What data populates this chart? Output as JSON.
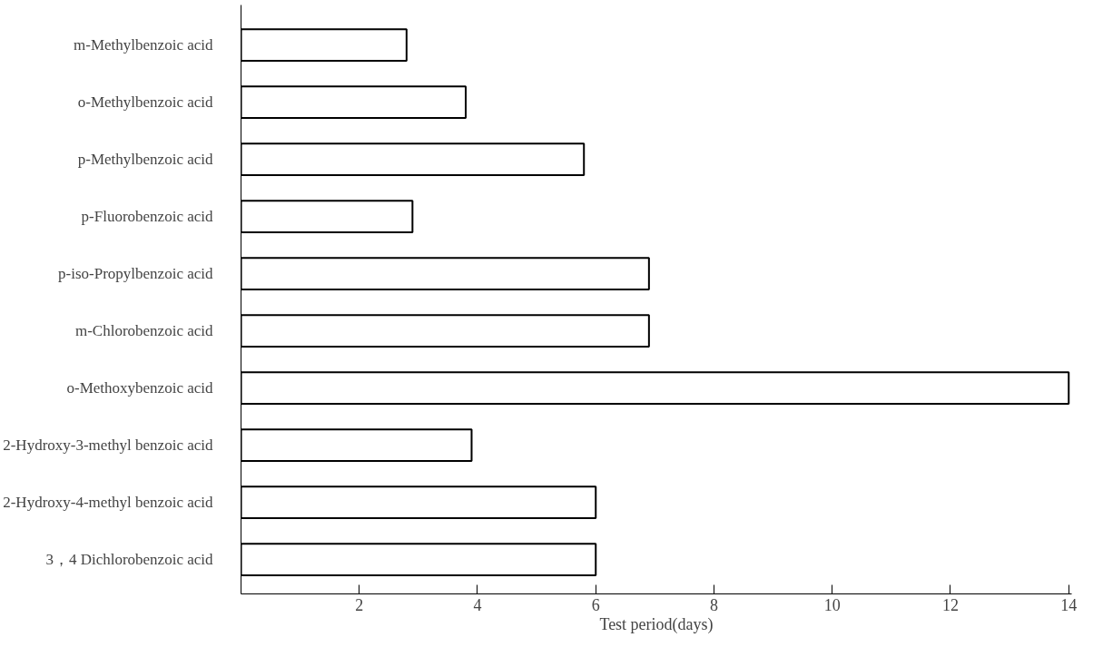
{
  "chart_data": {
    "type": "bar",
    "orientation": "horizontal",
    "xlabel": "Test period(days)",
    "categories": [
      "m-Methylbenzoic acid",
      "o-Methylbenzoic acid",
      "p-Methylbenzoic acid",
      "p-Fluorobenzoic acid",
      "p-iso-Propylbenzoic acid",
      "m-Chlorobenzoic acid",
      "o-Methoxybenzoic acid",
      "2-Hydroxy-3-methyl benzoic acid",
      "2-Hydroxy-4-methyl benzoic acid",
      "3，4 Dichlorobenzoic acid"
    ],
    "values": [
      2.8,
      3.8,
      5.8,
      2.9,
      6.9,
      6.9,
      14,
      3.9,
      6,
      6
    ],
    "color": "#ffffff",
    "xlim": [
      0,
      14
    ],
    "xticks": [
      2,
      4,
      6,
      8,
      10,
      12,
      14
    ],
    "grid": false
  }
}
